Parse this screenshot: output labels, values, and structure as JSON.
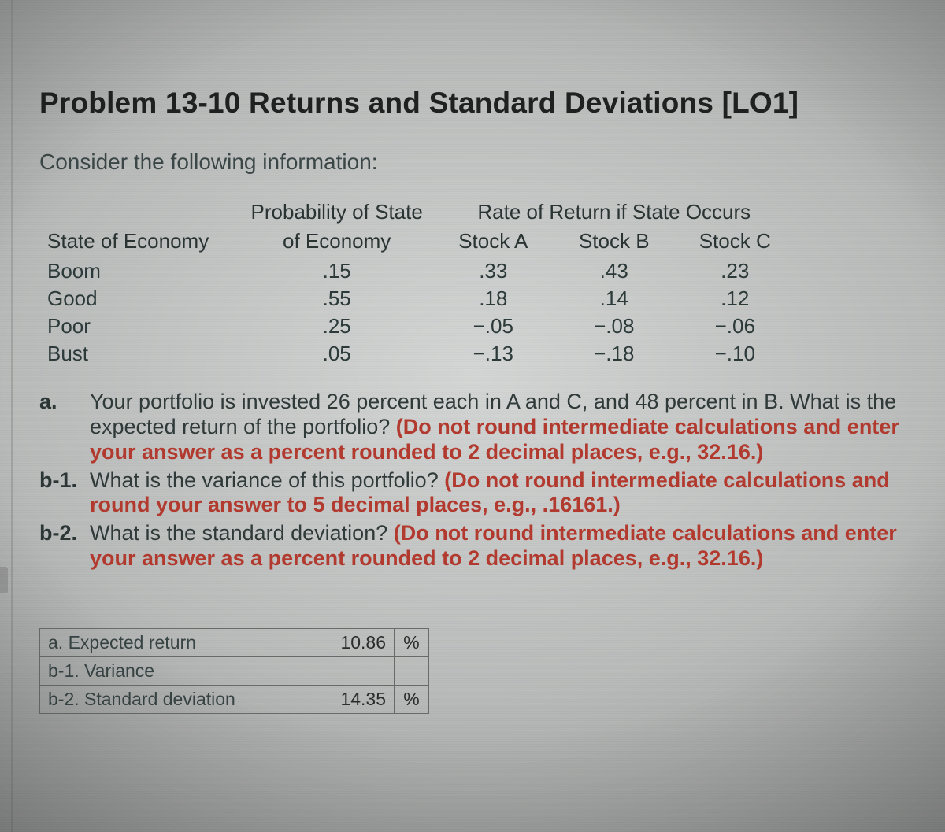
{
  "title": "Problem 13-10 Returns and Standard Deviations [LO1]",
  "lead": "Consider the following information:",
  "table": {
    "span_header": "Rate of Return if State Occurs",
    "columns": {
      "state": "State of Economy",
      "prob_top": "Probability of State",
      "prob_bot": "of Economy",
      "a": "Stock A",
      "b": "Stock B",
      "c": "Stock C"
    },
    "rows": [
      {
        "state": "Boom",
        "prob": ".15",
        "a": ".33",
        "b": ".43",
        "c": ".23"
      },
      {
        "state": "Good",
        "prob": ".55",
        "a": ".18",
        "b": ".14",
        "c": ".12"
      },
      {
        "state": "Poor",
        "prob": ".25",
        "a": "−.05",
        "b": "−.08",
        "c": "−.06"
      },
      {
        "state": "Bust",
        "prob": ".05",
        "a": "−.13",
        "b": "−.18",
        "c": "−.10"
      }
    ]
  },
  "questions": {
    "a": {
      "label": "a.",
      "plain1": "Your portfolio is invested 26 percent each in A and C, and 48 percent in B. What is the expected return of the portfolio? ",
      "red": "(Do not round intermediate calculations and enter your answer as a percent rounded to 2 decimal places, e.g., 32.16.)"
    },
    "b1": {
      "label": "b-1.",
      "plain1": "What is the variance of this portfolio? ",
      "red": "(Do not round intermediate calculations and round your answer to 5 decimal places, e.g., .16161.)"
    },
    "b2": {
      "label": "b-2.",
      "plain1": "What is the standard deviation? ",
      "red": "(Do not round intermediate calculations and enter your answer as a percent rounded to 2 decimal places, e.g., 32.16.)"
    }
  },
  "answers": {
    "a": {
      "label": "a. Expected return",
      "value": "10.86",
      "unit": "%"
    },
    "b1": {
      "label": "b-1. Variance",
      "value": "",
      "unit": ""
    },
    "b2": {
      "label": "b-2. Standard deviation",
      "value": "14.35",
      "unit": "%"
    }
  }
}
